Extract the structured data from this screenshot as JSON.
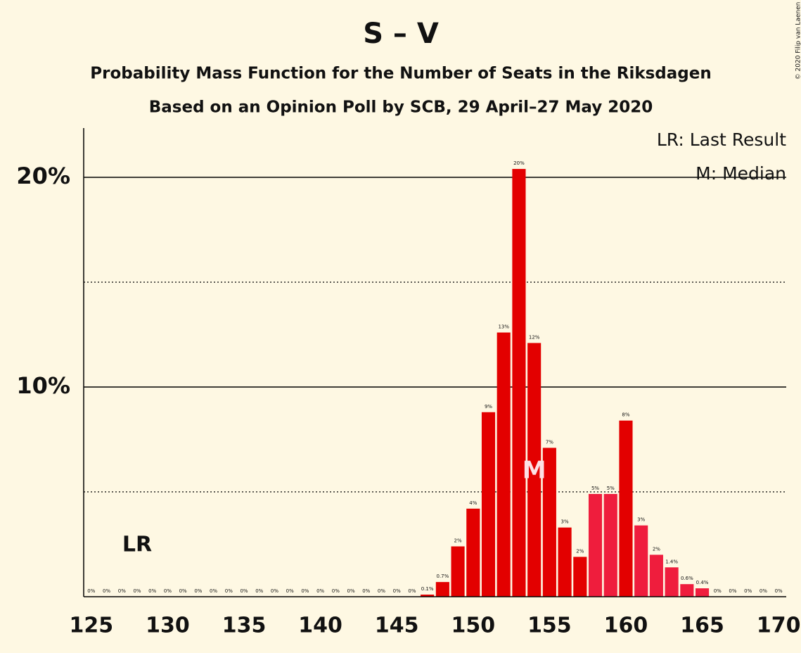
{
  "chart_data": {
    "type": "bar",
    "title": "S – V",
    "subtitle": "Probability Mass Function for the Number of Seats in the Riksdagen",
    "subtitle2": "Based on an Opinion Poll by SCB, 29 April–27 May 2020",
    "copyright": "© 2020 Filip van Laenen",
    "legend": [
      "LR: Last Result",
      "M: Median"
    ],
    "annotations": [
      {
        "label": "LR",
        "x": 128
      },
      {
        "label": "M",
        "x": 154
      }
    ],
    "x": [
      125,
      126,
      127,
      128,
      129,
      130,
      131,
      132,
      133,
      134,
      135,
      136,
      137,
      138,
      139,
      140,
      141,
      142,
      143,
      144,
      145,
      146,
      147,
      148,
      149,
      150,
      151,
      152,
      153,
      154,
      155,
      156,
      157,
      158,
      159,
      160,
      161,
      162,
      163,
      164,
      165,
      166,
      167,
      168,
      169,
      170
    ],
    "values": [
      0,
      0,
      0,
      0,
      0,
      0,
      0,
      0,
      0,
      0,
      0,
      0,
      0,
      0,
      0,
      0,
      0,
      0,
      0,
      0,
      0,
      0,
      0.1,
      0.7,
      2.4,
      4.2,
      8.8,
      12.6,
      20.4,
      12.1,
      7.1,
      3.3,
      1.9,
      4.9,
      4.9,
      8.4,
      3.4,
      2.0,
      1.4,
      0.6,
      0.4,
      0,
      0,
      0,
      0,
      0
    ],
    "value_labels": [
      "0%",
      "0%",
      "0%",
      "0%",
      "0%",
      "0%",
      "0%",
      "0%",
      "0%",
      "0%",
      "0%",
      "0%",
      "0%",
      "0%",
      "0%",
      "0%",
      "0%",
      "0%",
      "0%",
      "0%",
      "0%",
      "0%",
      "0.1%",
      "0.7%",
      "2%",
      "4%",
      "9%",
      "13%",
      "20%",
      "12%",
      "7%",
      "3%",
      "2%",
      "5%",
      "5%",
      "8%",
      "3%",
      "2%",
      "1.4%",
      "0.6%",
      "0.4%",
      "0%",
      "0%",
      "0%",
      "0%",
      "0%"
    ],
    "colors": [
      "#e30000",
      "#e30000",
      "#e30000",
      "#e30000",
      "#e30000",
      "#e30000",
      "#e30000",
      "#e30000",
      "#e30000",
      "#e30000",
      "#e30000",
      "#e30000",
      "#e30000",
      "#e30000",
      "#e30000",
      "#e30000",
      "#e30000",
      "#e30000",
      "#e30000",
      "#e30000",
      "#e30000",
      "#e30000",
      "#e30000",
      "#e30000",
      "#e30000",
      "#e30000",
      "#e30000",
      "#e30000",
      "#e30000",
      "#e30000",
      "#e30000",
      "#e30000",
      "#e30000",
      "#ef1d3d",
      "#ef1d3d",
      "#e30000",
      "#ef1d3d",
      "#ef1d3d",
      "#ef1d3d",
      "#ef1d3d",
      "#ef1d3d",
      "#e30000",
      "#e30000",
      "#e30000",
      "#e30000",
      "#e30000"
    ],
    "xlim": [
      124.5,
      170.5
    ],
    "ylim": [
      0,
      22.35
    ],
    "xticks": [
      125,
      130,
      135,
      140,
      145,
      150,
      155,
      160,
      165,
      170
    ],
    "yticks": [
      {
        "value": 10,
        "label": "10%"
      },
      {
        "value": 20,
        "label": "20%"
      }
    ],
    "yminor": [
      5,
      15
    ],
    "grid": true
  }
}
